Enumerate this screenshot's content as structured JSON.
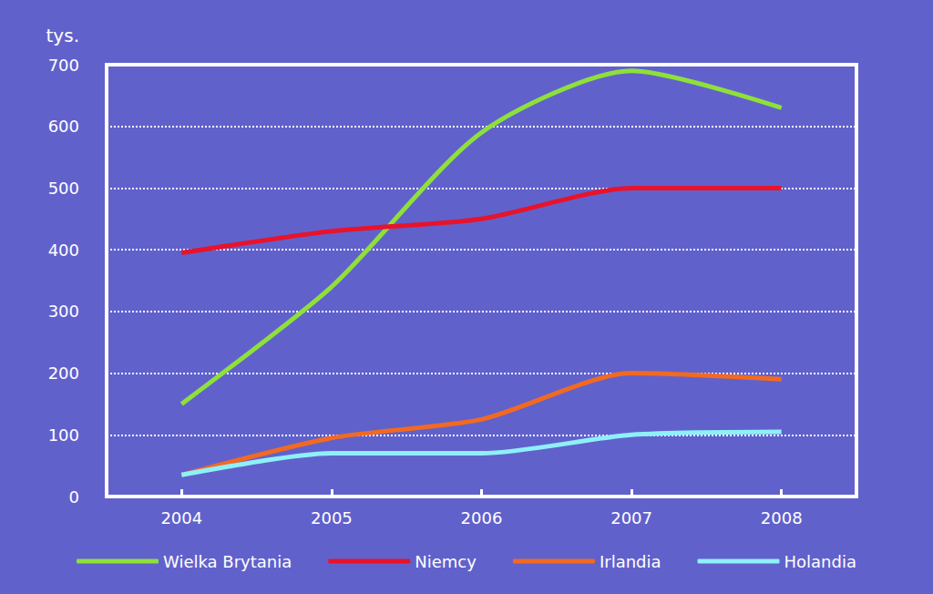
{
  "chart_data": {
    "type": "line",
    "y_label": "tys.",
    "categories": [
      "2004",
      "2005",
      "2006",
      "2007",
      "2008"
    ],
    "series": [
      {
        "name": "Wielka Brytania",
        "color": "#8ee03a",
        "values": [
          150,
          340,
          590,
          690,
          630
        ]
      },
      {
        "name": "Niemcy",
        "color": "#e8132a",
        "values": [
          395,
          430,
          450,
          500,
          500
        ]
      },
      {
        "name": "Irlandia",
        "color": "#f26a21",
        "values": [
          35,
          95,
          125,
          200,
          190
        ]
      },
      {
        "name": "Holandia",
        "color": "#8ef0f8",
        "values": [
          35,
          70,
          70,
          100,
          105
        ]
      }
    ],
    "ylim": [
      0,
      700
    ],
    "yticks": [
      0,
      100,
      200,
      300,
      400,
      500,
      600,
      700
    ],
    "grid": true,
    "legend": "bottom"
  }
}
